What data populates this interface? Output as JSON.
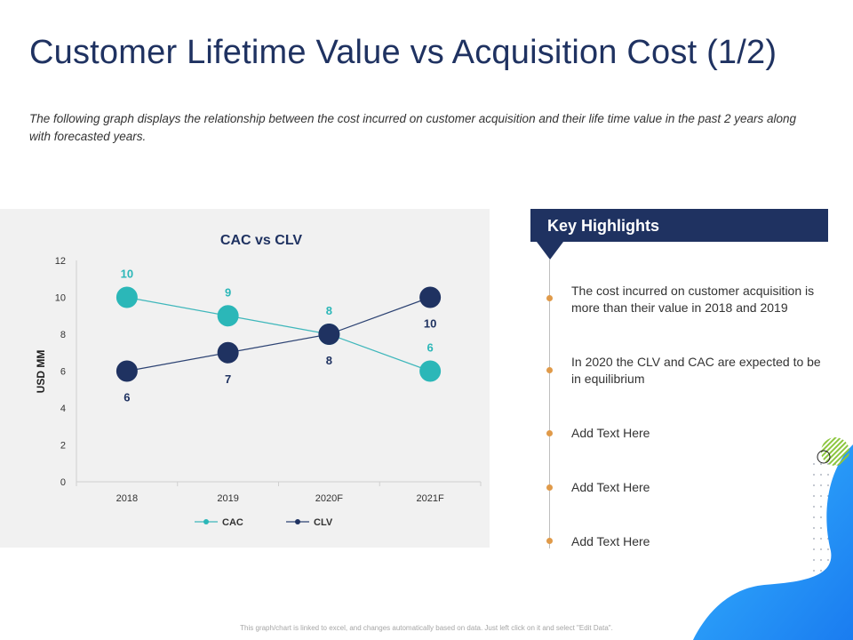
{
  "title": "Customer Lifetime Value vs Acquisition Cost (1/2)",
  "subtitle": "The following graph displays the relationship between the cost incurred on customer acquisition and their life time value in the past 2 years along with forecasted years.",
  "chart_data": {
    "type": "line",
    "title": "CAC vs CLV",
    "xlabel": "",
    "ylabel": "USD MM",
    "categories": [
      "2018",
      "2019",
      "2020F",
      "2021F"
    ],
    "ylim": [
      0,
      12
    ],
    "yticks": [
      "0",
      "2",
      "4",
      "6",
      "8",
      "10",
      "12"
    ],
    "grid": false,
    "legend_position": "bottom",
    "series": [
      {
        "name": "CAC",
        "values": [
          10,
          9,
          8,
          6
        ],
        "labels": [
          "10",
          "9",
          "8",
          "6"
        ],
        "label_position": "above",
        "color": "#2bb7b8",
        "line_color": "#3fb7bb"
      },
      {
        "name": "CLV",
        "values": [
          6,
          7,
          8,
          10
        ],
        "labels": [
          "6",
          "7",
          "8",
          "10"
        ],
        "label_position": "below",
        "color": "#1f3261",
        "line_color": "#2d4373"
      }
    ]
  },
  "highlights": {
    "heading": "Key Highlights",
    "items": [
      "The cost incurred on customer acquisition is more than their value in 2018 and 2019",
      "In 2020 the CLV and CAC are expected to be in equilibrium",
      "Add Text Here",
      "Add Text Here",
      "Add Text Here"
    ]
  },
  "footnote": "This graph/chart is linked to excel, and changes automatically based on data. Just left click on it and select \"Edit Data\".",
  "colors": {
    "navy": "#1f3261",
    "teal": "#2bb7b8",
    "bullet": "#e09a49",
    "panel": "#f1f1f1",
    "blue_decoration": "#1e90ff",
    "lime_decoration": "#8dc63f"
  }
}
